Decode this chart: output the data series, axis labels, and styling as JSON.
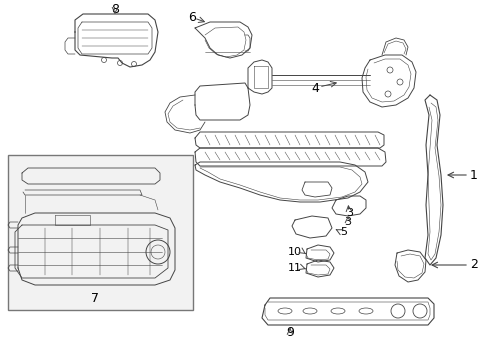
{
  "bg_color": "#ffffff",
  "line_color": "#444444",
  "label_color": "#000000",
  "fig_width": 4.9,
  "fig_height": 3.6,
  "dpi": 100
}
